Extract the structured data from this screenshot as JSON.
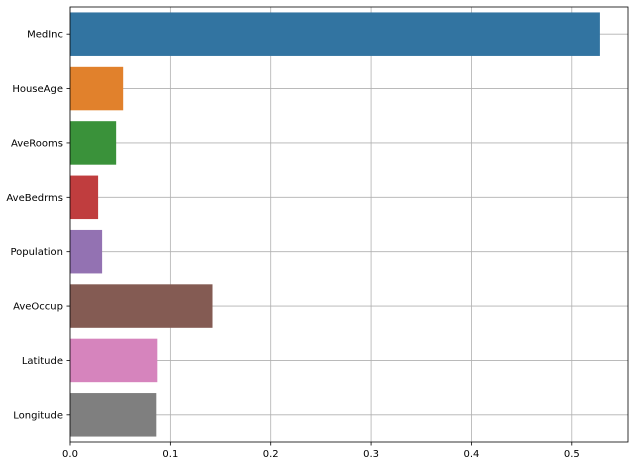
{
  "chart_data": {
    "type": "bar",
    "orientation": "horizontal",
    "title": "",
    "xlabel": "",
    "ylabel": "",
    "categories": [
      "MedInc",
      "HouseAge",
      "AveRooms",
      "AveBedrms",
      "Population",
      "AveOccup",
      "Latitude",
      "Longitude"
    ],
    "values": [
      0.528,
      0.053,
      0.046,
      0.028,
      0.032,
      0.142,
      0.087,
      0.086
    ],
    "colors": [
      "#3274a1",
      "#e1812c",
      "#3a923a",
      "#c03d3e",
      "#9372b2",
      "#845b53",
      "#d684bd",
      "#7f7f7f"
    ],
    "xlim": [
      0,
      0.556
    ],
    "xticks": [
      0.0,
      0.1,
      0.2,
      0.3,
      0.4,
      0.5
    ],
    "xtick_labels": [
      "0.0",
      "0.1",
      "0.2",
      "0.3",
      "0.4",
      "0.5"
    ],
    "grid": true
  }
}
